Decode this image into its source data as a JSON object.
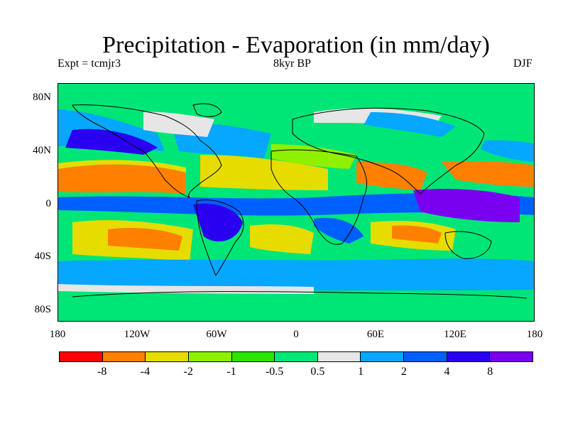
{
  "title": "Precipitation - Evaporation (in mm/day)",
  "experiment": "Expt = tcmjr3",
  "period": "8kyr BP",
  "season": "DJF",
  "y_ticks": [
    "80N",
    "40N",
    "0",
    "40S",
    "80S"
  ],
  "x_ticks": [
    "180",
    "120W",
    "60W",
    "0",
    "60E",
    "120E",
    "180"
  ],
  "colorbar": {
    "colors": [
      "#ff0000",
      "#ff8000",
      "#e6dc00",
      "#8ff000",
      "#2de300",
      "#00e676",
      "#e6e6e6",
      "#05a7ff",
      "#005fff",
      "#2a00f0",
      "#7a00f0"
    ],
    "labels": [
      "-8",
      "-4",
      "-2",
      "-1",
      "-0.5",
      "0.5",
      "1",
      "2",
      "4",
      "8"
    ]
  }
}
